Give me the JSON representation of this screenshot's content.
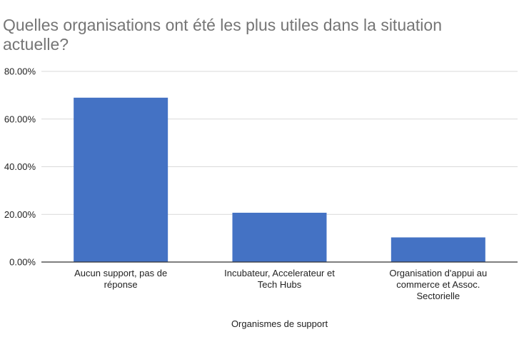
{
  "chart_data": {
    "type": "bar",
    "title": "Quelles organisations ont été les plus utiles dans la situation actuelle?",
    "xlabel": "Organismes de support",
    "ylabel": "",
    "categories": [
      "Aucun support, pas de réponse",
      "Incubateur, Accelerateur et Tech Hubs",
      "Organisation d'appui au commerce et Assoc. Sectorielle"
    ],
    "category_lines": [
      [
        "Aucun support, pas de",
        "réponse"
      ],
      [
        "Incubateur, Accelerateur et",
        "Tech Hubs"
      ],
      [
        "Organisation d'appui au",
        "commerce et Assoc.",
        "Sectorielle"
      ]
    ],
    "values": [
      68.97,
      20.69,
      10.34
    ],
    "ylim": [
      0,
      80
    ],
    "yticks": [
      0,
      20,
      40,
      60,
      80
    ],
    "ytick_labels": [
      "0.00%",
      "20.00%",
      "40.00%",
      "60.00%",
      "80.00%"
    ],
    "grid": true,
    "legend": "none",
    "bar_color": "#4472c4",
    "grid_color": "#d9d9d9",
    "axis_color": "#333333"
  }
}
